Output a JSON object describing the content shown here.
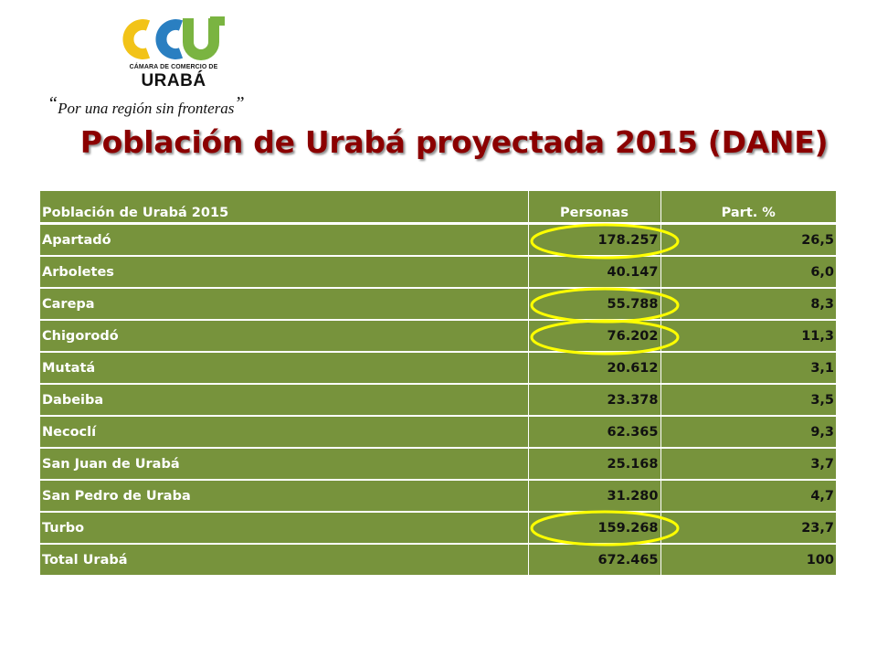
{
  "logo": {
    "line1": "CÁMARA DE COMERCIO DE",
    "line2": "URABÁ",
    "colors": {
      "yellow": "#f2c318",
      "blue": "#2a7fc1",
      "green": "#7ab441"
    }
  },
  "slogan": "Por una región sin fronteras",
  "title": "Población de Urabá proyectada 2015 (DANE)",
  "table": {
    "headers": [
      "Población de Urabá 2015",
      "Personas",
      "Part. %"
    ],
    "rows": [
      {
        "name": "Apartadó",
        "personas": "178.257",
        "part": "26,5",
        "highlighted": true
      },
      {
        "name": "Arboletes",
        "personas": "40.147",
        "part": "6,0",
        "highlighted": false
      },
      {
        "name": "Carepa",
        "personas": "55.788",
        "part": "8,3",
        "highlighted": true
      },
      {
        "name": "Chigorodó",
        "personas": "76.202",
        "part": "11,3",
        "highlighted": true
      },
      {
        "name": "Mutatá",
        "personas": "20.612",
        "part": "3,1",
        "highlighted": false
      },
      {
        "name": "Dabeiba",
        "personas": "23.378",
        "part": "3,5",
        "highlighted": false
      },
      {
        "name": "Necoclí",
        "personas": "62.365",
        "part": "9,3",
        "highlighted": false
      },
      {
        "name": "San Juan de Urabá",
        "personas": "25.168",
        "part": "3,7",
        "highlighted": false
      },
      {
        "name": "San Pedro de Uraba",
        "personas": "31.280",
        "part": "4,7",
        "highlighted": false
      },
      {
        "name": "Turbo",
        "personas": "159.268",
        "part": "23,7",
        "highlighted": true
      }
    ],
    "total": {
      "name": "Total Urabá",
      "personas": "672.465",
      "part": "100"
    }
  },
  "colors": {
    "table_bg": "#77933c",
    "title": "#8b0000",
    "highlight_oval": "#ffff00"
  }
}
